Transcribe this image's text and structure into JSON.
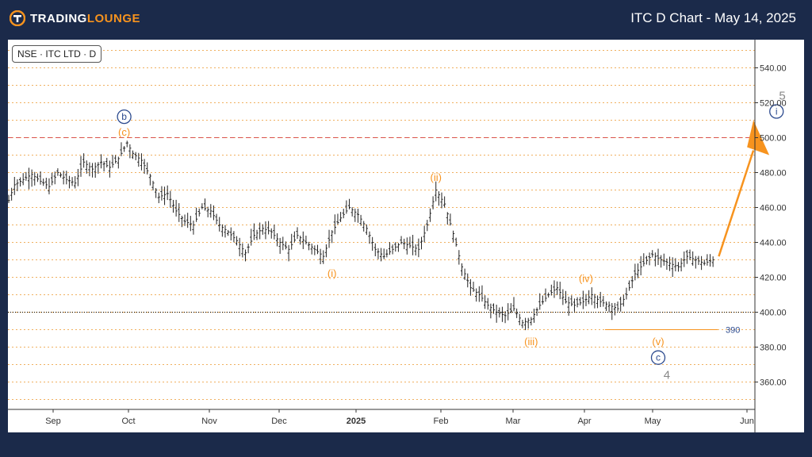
{
  "header": {
    "brand_first": "TRADING",
    "brand_second": "LOUNGE",
    "chart_title": "ITC D Chart - May 14, 2025"
  },
  "symbol_label": "NSE · ITC LTD · D",
  "colors": {
    "background": "#1b2a4a",
    "accent_orange": "#f7931e",
    "wave_blue": "#2d4b8f",
    "wave_gray": "#888888",
    "resistance_red": "#d9534f",
    "grid_orange": "#f0b060"
  },
  "chart_data": {
    "type": "ohlc",
    "x_tick_labels": [
      "Sep",
      "Oct",
      "Nov",
      "Dec",
      "2025",
      "Feb",
      "Mar",
      "Apr",
      "May",
      "Jun"
    ],
    "y_tick_labels": [
      "360.00",
      "380.00",
      "400.00",
      "420.00",
      "440.00",
      "460.00",
      "480.00",
      "500.00",
      "520.00",
      "540.00"
    ],
    "ylim": [
      346,
      551
    ],
    "horizontal_levels": [
      {
        "value": 500,
        "style": "red-dashed"
      },
      {
        "value": 400,
        "style": "black-dotted"
      }
    ],
    "support_level": {
      "value": 390,
      "label": "390"
    },
    "price_path": [
      [
        0,
        464
      ],
      [
        2,
        473
      ],
      [
        5,
        476
      ],
      [
        8,
        479
      ],
      [
        11,
        475
      ],
      [
        14,
        472
      ],
      [
        17,
        480
      ],
      [
        20,
        476
      ],
      [
        23,
        474
      ],
      [
        26,
        486
      ],
      [
        29,
        482
      ],
      [
        32,
        486
      ],
      [
        35,
        483
      ],
      [
        38,
        488
      ],
      [
        41,
        497
      ],
      [
        43,
        491
      ],
      [
        46,
        487
      ],
      [
        49,
        478
      ],
      [
        52,
        466
      ],
      [
        55,
        468
      ],
      [
        58,
        458
      ],
      [
        61,
        452
      ],
      [
        64,
        450
      ],
      [
        67,
        460
      ],
      [
        70,
        458
      ],
      [
        73,
        450
      ],
      [
        76,
        446
      ],
      [
        79,
        441
      ],
      [
        82,
        434
      ],
      [
        85,
        444
      ],
      [
        88,
        448
      ],
      [
        91,
        446
      ],
      [
        94,
        440
      ],
      [
        97,
        436
      ],
      [
        100,
        444
      ],
      [
        103,
        440
      ],
      [
        106,
        436
      ],
      [
        109,
        432
      ],
      [
        112,
        446
      ],
      [
        115,
        454
      ],
      [
        118,
        460
      ],
      [
        121,
        456
      ],
      [
        124,
        448
      ],
      [
        127,
        436
      ],
      [
        130,
        432
      ],
      [
        133,
        436
      ],
      [
        136,
        440
      ],
      [
        139,
        438
      ],
      [
        142,
        436
      ],
      [
        145,
        450
      ],
      [
        148,
        470
      ],
      [
        151,
        462
      ],
      [
        154,
        445
      ],
      [
        157,
        426
      ],
      [
        160,
        414
      ],
      [
        163,
        410
      ],
      [
        166,
        404
      ],
      [
        169,
        400
      ],
      [
        172,
        398
      ],
      [
        175,
        402
      ],
      [
        178,
        394
      ],
      [
        181,
        396
      ],
      [
        184,
        404
      ],
      [
        187,
        410
      ],
      [
        190,
        414
      ],
      [
        193,
        406
      ],
      [
        196,
        404
      ],
      [
        199,
        406
      ],
      [
        202,
        410
      ],
      [
        205,
        406
      ],
      [
        208,
        404
      ],
      [
        211,
        402
      ],
      [
        214,
        410
      ],
      [
        217,
        422
      ],
      [
        220,
        428
      ],
      [
        223,
        433
      ],
      [
        226,
        430
      ],
      [
        229,
        428
      ],
      [
        232,
        426
      ],
      [
        235,
        432
      ],
      [
        238,
        430
      ],
      [
        241,
        428
      ],
      [
        244,
        430
      ]
    ],
    "forecast_arrow": {
      "from": [
        246,
        432
      ],
      "to": [
        258,
        500
      ]
    },
    "wave_labels": [
      {
        "text": "b",
        "style": "blue-circle",
        "x": 40,
        "y": 512
      },
      {
        "text": "(c)",
        "style": "orange",
        "x": 40,
        "y": 503
      },
      {
        "text": "(i)",
        "style": "orange",
        "x": 112,
        "y": 422
      },
      {
        "text": "(ii)",
        "style": "orange",
        "x": 148,
        "y": 477
      },
      {
        "text": "(iii)",
        "style": "orange",
        "x": 181,
        "y": 383
      },
      {
        "text": "(iv)",
        "style": "orange",
        "x": 200,
        "y": 419
      },
      {
        "text": "(v)",
        "style": "orange",
        "x": 225,
        "y": 383
      },
      {
        "text": "c",
        "style": "blue-circle",
        "x": 225,
        "y": 374
      },
      {
        "text": "4",
        "style": "gray",
        "x": 228,
        "y": 364
      },
      {
        "text": "5",
        "style": "gray",
        "x": 268,
        "y": 524
      },
      {
        "text": "i",
        "style": "blue-circle",
        "x": 266,
        "y": 515
      }
    ]
  }
}
